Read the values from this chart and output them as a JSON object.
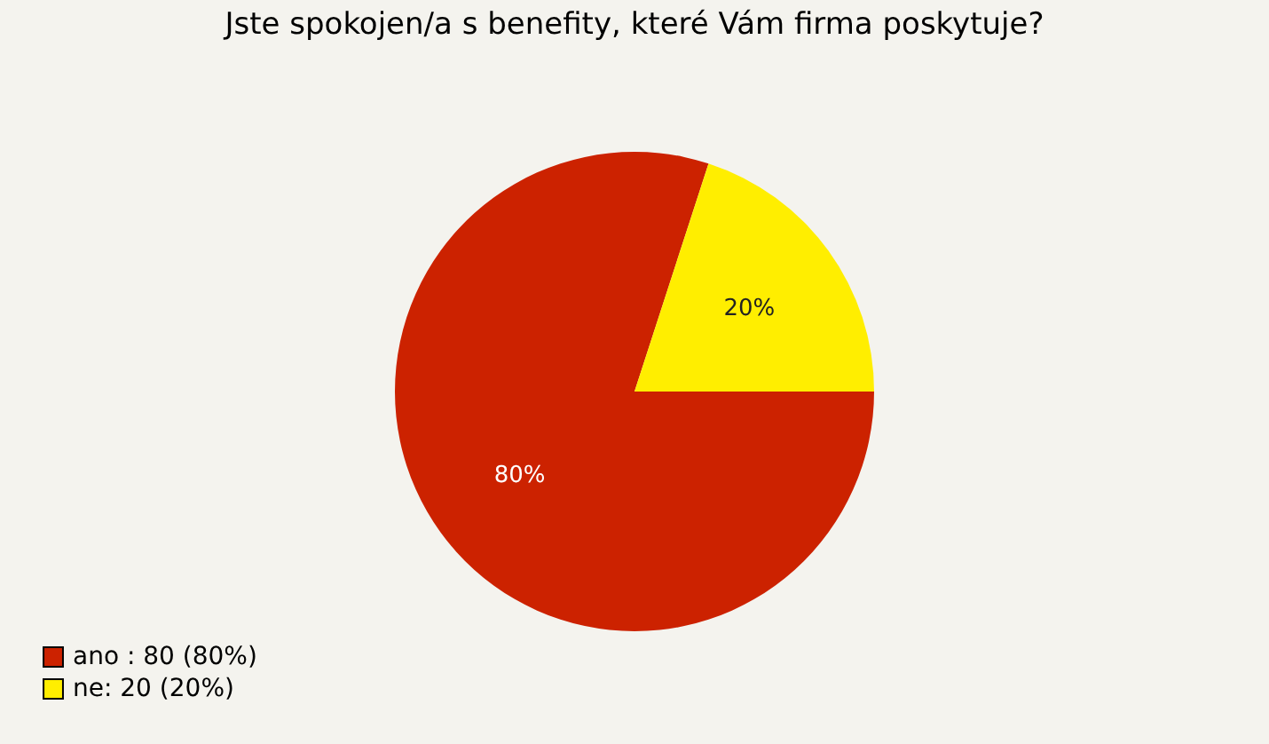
{
  "chart_data": {
    "type": "pie",
    "title": "Jste spokojen/a s benefity, které Vám firma poskytuje?",
    "categories": [
      "ano : 80 (80%)",
      "ne: 20 (20%)"
    ],
    "values": [
      80,
      20
    ],
    "colors": [
      "#cc2200",
      "#ffee00"
    ],
    "value_labels": [
      "80%",
      "20%"
    ],
    "legend": "bottom left"
  }
}
